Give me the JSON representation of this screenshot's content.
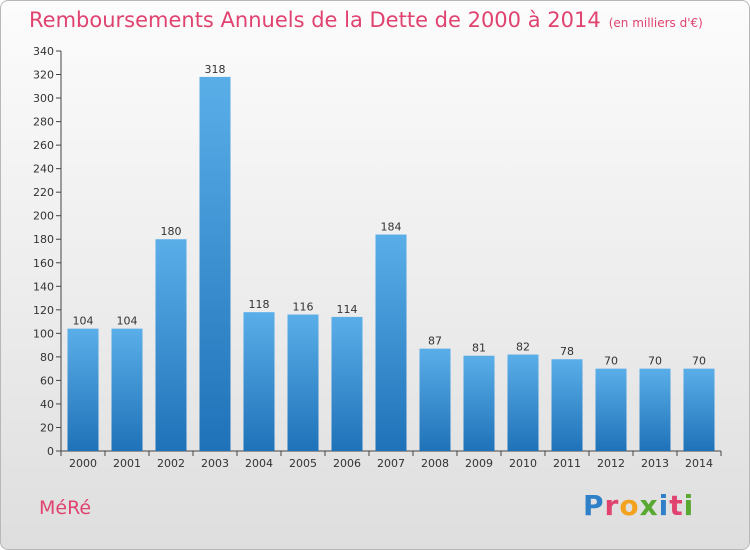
{
  "chart_data": {
    "type": "bar",
    "title": "Remboursements Annuels de la Dette de 2000 à 2014",
    "unit": "(en milliers d'€)",
    "categories": [
      "2000",
      "2001",
      "2002",
      "2003",
      "2004",
      "2005",
      "2006",
      "2007",
      "2008",
      "2009",
      "2010",
      "2011",
      "2012",
      "2013",
      "2014"
    ],
    "values": [
      104,
      104,
      180,
      318,
      118,
      116,
      114,
      184,
      87,
      81,
      82,
      78,
      70,
      70,
      70
    ],
    "ylim": [
      0,
      340
    ],
    "yticks": [
      0,
      20,
      40,
      60,
      80,
      100,
      120,
      140,
      160,
      180,
      200,
      220,
      240,
      260,
      280,
      300,
      320,
      340
    ],
    "xlabel": "",
    "ylabel": "",
    "grid": false,
    "bar_color_top": "#5aaee8",
    "bar_color_bottom": "#1f72b8"
  },
  "footer": {
    "commune": "MéRé",
    "logo_letters": [
      {
        "ch": "P",
        "color": "#2f80c8"
      },
      {
        "ch": "r",
        "color": "#e0436f"
      },
      {
        "ch": "o",
        "color": "#f2a21c"
      },
      {
        "ch": "x",
        "color": "#59a832"
      },
      {
        "ch": "i",
        "color": "#2f80c8"
      },
      {
        "ch": "t",
        "color": "#e0436f"
      },
      {
        "ch": "i",
        "color": "#59a832"
      }
    ]
  }
}
